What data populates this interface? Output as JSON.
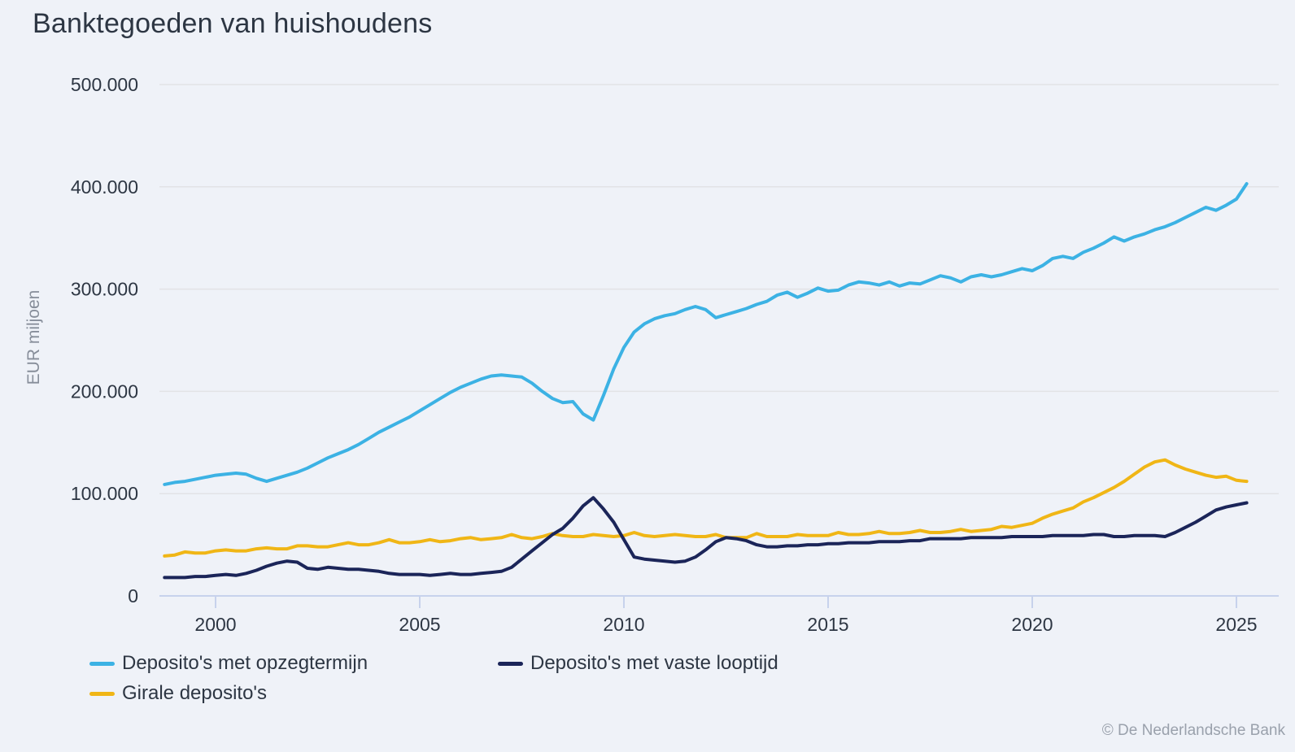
{
  "title": "Banktegoeden van huishoudens",
  "copyright": "© De Nederlandsche Bank",
  "colors": {
    "background": "#eff2f8",
    "gridline": "#e2e3e6",
    "axis_line": "#c7d2ec",
    "text": "#2d3643",
    "muted_text": "#878e9a",
    "series_opzegtermijn": "#3cb2e4",
    "series_vaste_looptijd": "#1b2559",
    "series_girale": "#f0b616"
  },
  "chart_data": {
    "type": "line",
    "title": "Banktegoeden van huishoudens",
    "xlabel": "",
    "ylabel": "EUR miljoen",
    "unit": "EUR miljoen",
    "grid": "horizontal",
    "legend_position": "bottom-left",
    "ylim": [
      0,
      500000
    ],
    "xlim": [
      1998.6,
      2025.45
    ],
    "x_start": 1998.75,
    "x_step": 0.25,
    "x_end": 2025.25,
    "y_ticks": [
      {
        "value": 0,
        "label": "0"
      },
      {
        "value": 100000,
        "label": "100.000"
      },
      {
        "value": 200000,
        "label": "200.000"
      },
      {
        "value": 300000,
        "label": "300.000"
      },
      {
        "value": 400000,
        "label": "400.000"
      },
      {
        "value": 500000,
        "label": "500.000"
      }
    ],
    "x_ticks": [
      {
        "value": 2000,
        "label": "2000"
      },
      {
        "value": 2005,
        "label": "2005"
      },
      {
        "value": 2010,
        "label": "2010"
      },
      {
        "value": 2015,
        "label": "2015"
      },
      {
        "value": 2020,
        "label": "2020"
      },
      {
        "value": 2025,
        "label": "2025"
      }
    ],
    "series": [
      {
        "name": "Deposito's met opzegtermijn",
        "color": "#3cb2e4",
        "values": [
          109000,
          111000,
          112000,
          114000,
          116000,
          118000,
          119000,
          120000,
          119000,
          115000,
          112000,
          115000,
          118000,
          121000,
          125000,
          130000,
          135000,
          139000,
          143000,
          148000,
          154000,
          160000,
          165000,
          170000,
          175000,
          181000,
          187000,
          193000,
          199000,
          204000,
          208000,
          212000,
          215000,
          216000,
          215000,
          214000,
          208000,
          200000,
          193000,
          189000,
          190000,
          178000,
          172000,
          196000,
          222000,
          243000,
          258000,
          266000,
          271000,
          274000,
          276000,
          280000,
          283000,
          280000,
          272000,
          275000,
          278000,
          281000,
          285000,
          288000,
          294000,
          297000,
          292000,
          296000,
          301000,
          298000,
          299000,
          304000,
          307000,
          306000,
          304000,
          307000,
          303000,
          306000,
          305000,
          309000,
          313000,
          311000,
          307000,
          312000,
          314000,
          312000,
          314000,
          317000,
          320000,
          318000,
          323000,
          330000,
          332000,
          330000,
          336000,
          340000,
          345000,
          351000,
          347000,
          351000,
          354000,
          358000,
          361000,
          365000,
          370000,
          375000,
          380000,
          377000,
          382000,
          388000,
          403000
        ]
      },
      {
        "name": "Deposito's met vaste looptijd",
        "color": "#1b2559",
        "values": [
          18000,
          18000,
          18000,
          19000,
          19000,
          20000,
          21000,
          20000,
          22000,
          25000,
          29000,
          32000,
          34000,
          33000,
          27000,
          26000,
          28000,
          27000,
          26000,
          26000,
          25000,
          24000,
          22000,
          21000,
          21000,
          21000,
          20000,
          21000,
          22000,
          21000,
          21000,
          22000,
          23000,
          24000,
          28000,
          36000,
          44000,
          52000,
          60000,
          66000,
          76000,
          88000,
          96000,
          85000,
          72000,
          55000,
          38000,
          36000,
          35000,
          34000,
          33000,
          34000,
          38000,
          45000,
          53000,
          57000,
          56000,
          54000,
          50000,
          48000,
          48000,
          49000,
          49000,
          50000,
          50000,
          51000,
          51000,
          52000,
          52000,
          52000,
          53000,
          53000,
          53000,
          54000,
          54000,
          56000,
          56000,
          56000,
          56000,
          57000,
          57000,
          57000,
          57000,
          58000,
          58000,
          58000,
          58000,
          59000,
          59000,
          59000,
          59000,
          60000,
          60000,
          58000,
          58000,
          59000,
          59000,
          59000,
          58000,
          62000,
          67000,
          72000,
          78000,
          84000,
          87000,
          89000,
          91000
        ]
      },
      {
        "name": "Girale deposito's",
        "color": "#f0b616",
        "values": [
          39000,
          40000,
          43000,
          42000,
          42000,
          44000,
          45000,
          44000,
          44000,
          46000,
          47000,
          46000,
          46000,
          49000,
          49000,
          48000,
          48000,
          50000,
          52000,
          50000,
          50000,
          52000,
          55000,
          52000,
          52000,
          53000,
          55000,
          53000,
          54000,
          56000,
          57000,
          55000,
          56000,
          57000,
          60000,
          57000,
          56000,
          58000,
          61000,
          59000,
          58000,
          58000,
          60000,
          59000,
          58000,
          59000,
          62000,
          59000,
          58000,
          59000,
          60000,
          59000,
          58000,
          58000,
          60000,
          57000,
          57000,
          57000,
          61000,
          58000,
          58000,
          58000,
          60000,
          59000,
          59000,
          59000,
          62000,
          60000,
          60000,
          61000,
          63000,
          61000,
          61000,
          62000,
          64000,
          62000,
          62000,
          63000,
          65000,
          63000,
          64000,
          65000,
          68000,
          67000,
          69000,
          71000,
          76000,
          80000,
          83000,
          86000,
          92000,
          96000,
          101000,
          106000,
          112000,
          119000,
          126000,
          131000,
          133000,
          128000,
          124000,
          121000,
          118000,
          116000,
          117000,
          113000,
          112000
        ]
      }
    ]
  }
}
